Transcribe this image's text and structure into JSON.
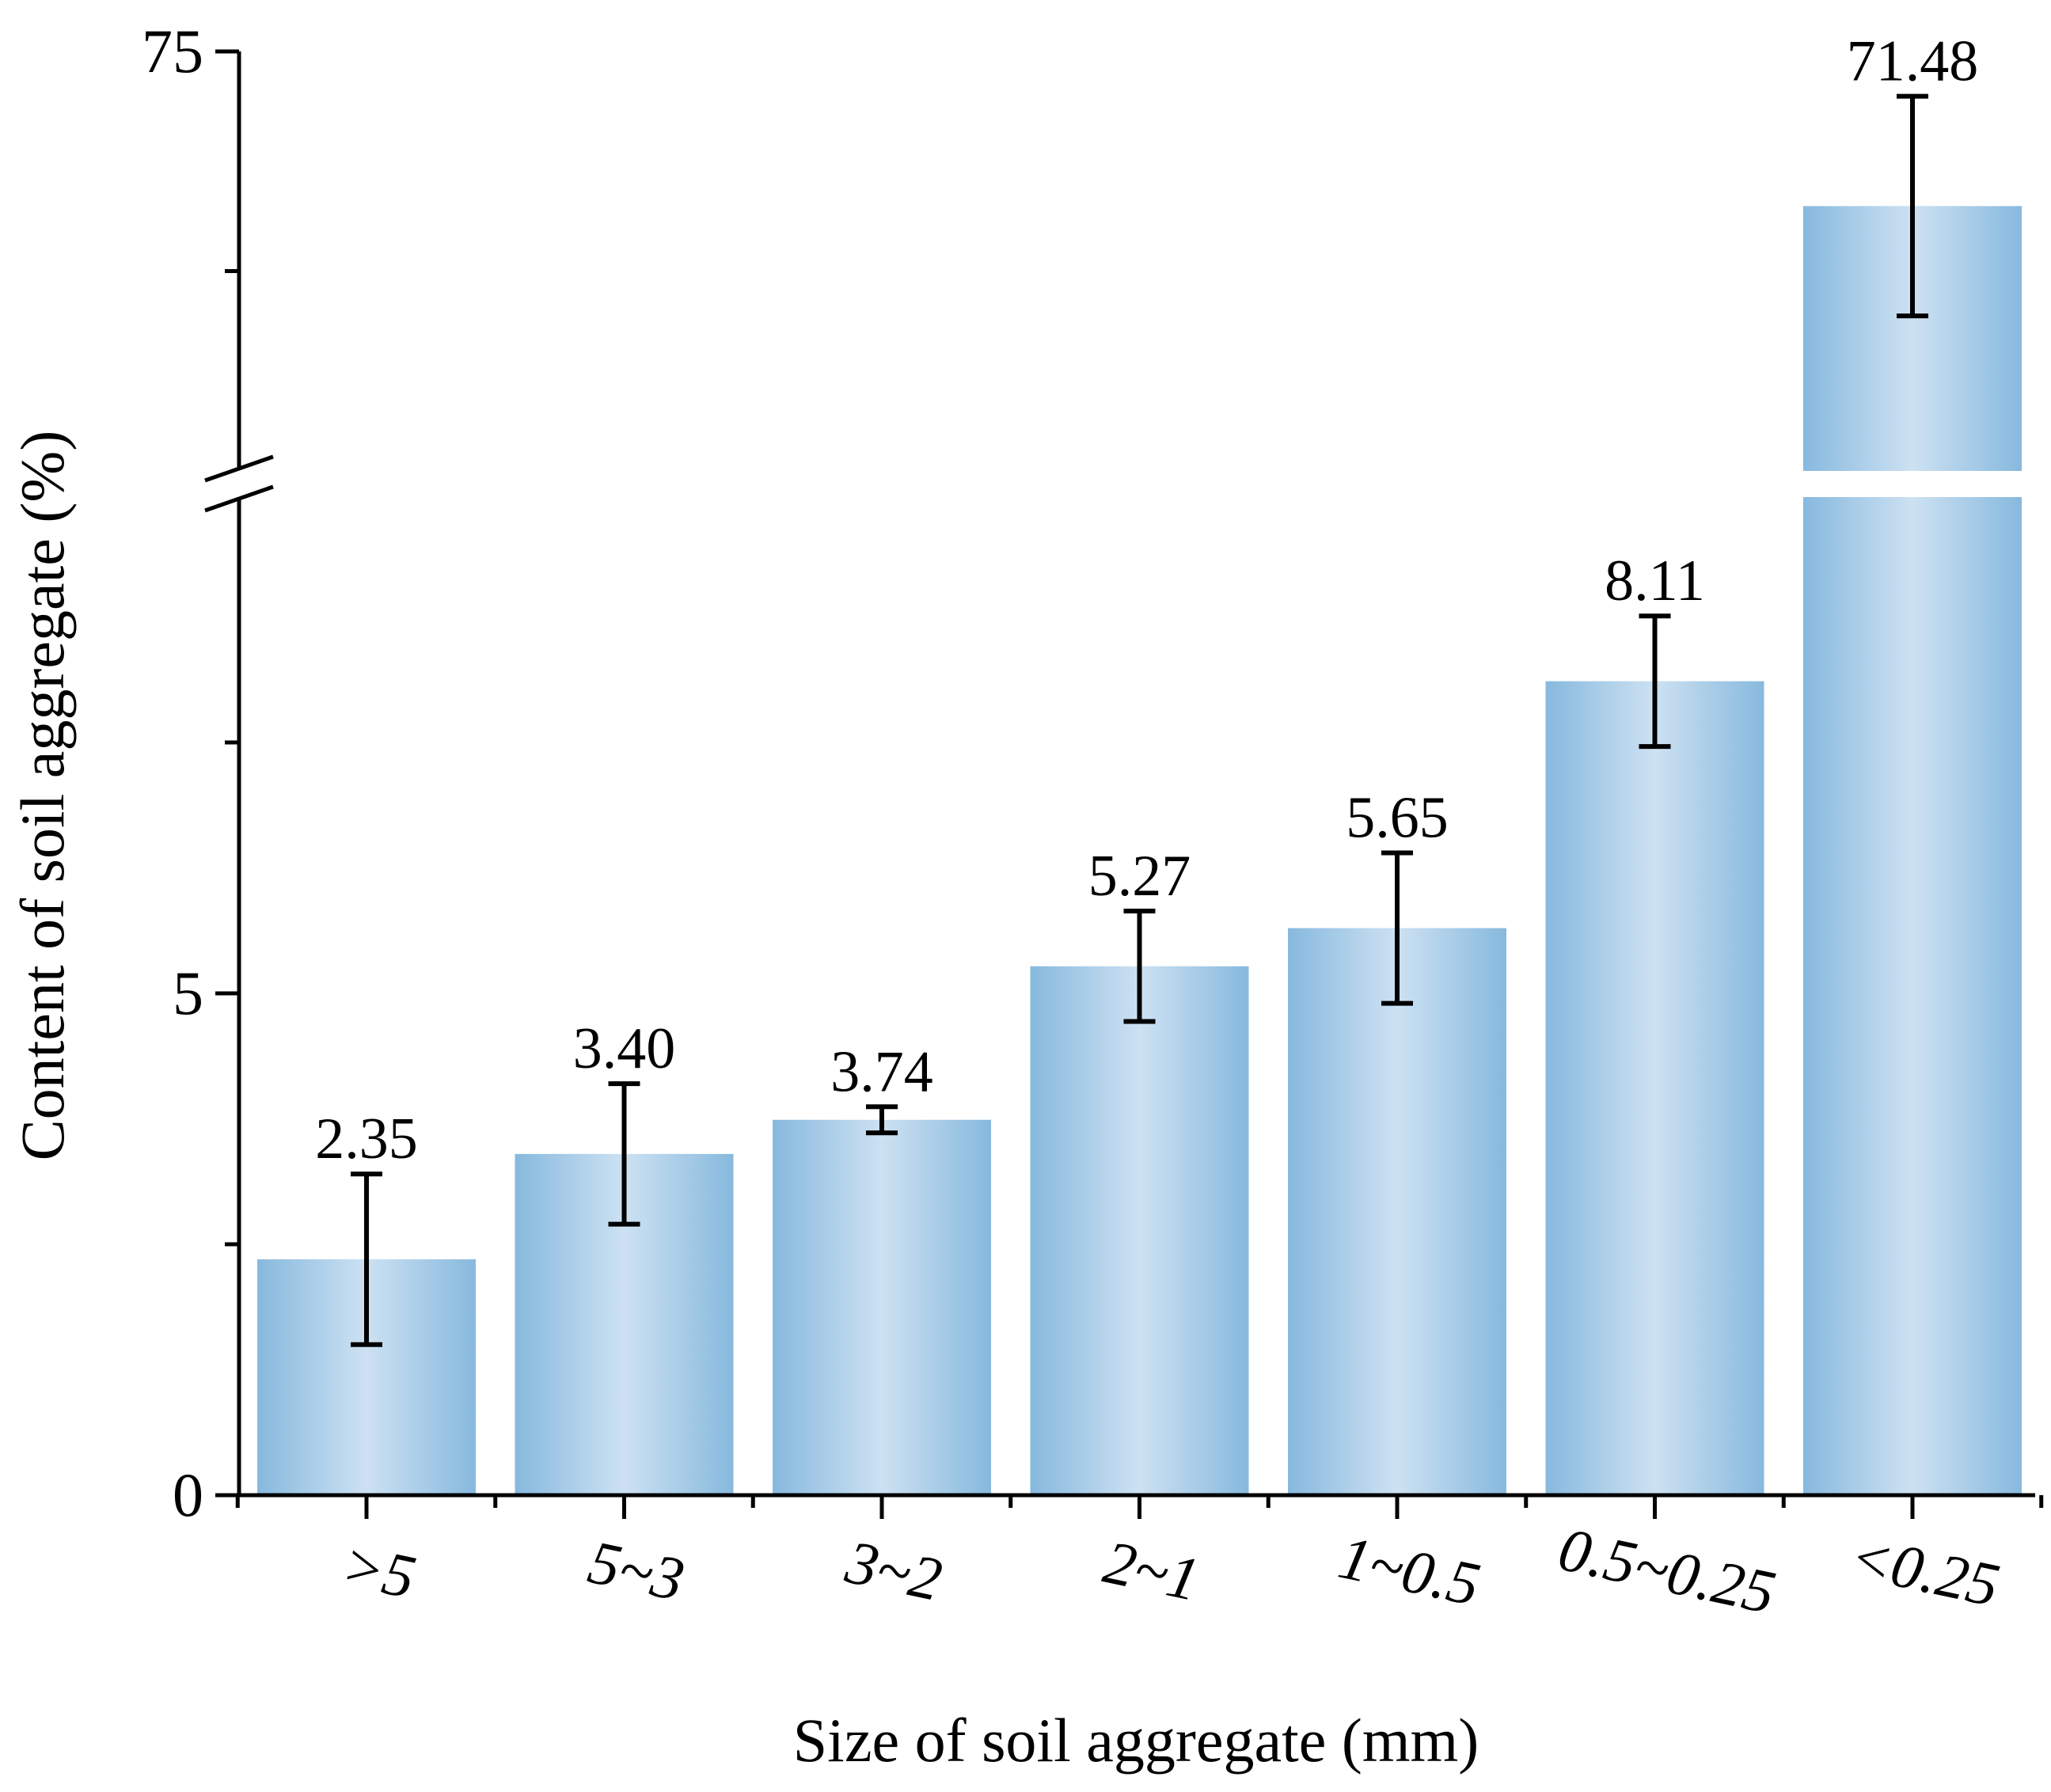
{
  "chart_data": {
    "type": "bar",
    "title": "",
    "xlabel": "Size of soil aggregate (mm)",
    "ylabel": "Content of soil aggregate (%)",
    "categories": [
      ">5",
      "5~3",
      "3~2",
      "2~1",
      "1~0.5",
      "0.5~0.25",
      "<0.25"
    ],
    "values": [
      2.35,
      3.4,
      3.74,
      5.27,
      5.65,
      8.11,
      71.48
    ],
    "value_labels": [
      "2.35",
      "3.40",
      "3.74",
      "5.27",
      "5.65",
      "8.11",
      "71.48"
    ],
    "errors": [
      0.85,
      0.7,
      0.13,
      0.55,
      0.75,
      0.65,
      2.5
    ],
    "y_broken_axis": {
      "lower_range": [
        0,
        10
      ],
      "upper_range": [
        65,
        75
      ],
      "tick_labels": [
        "0",
        "5",
        "75"
      ]
    },
    "grid": false,
    "legend": "none",
    "bar_color": "#87b9de",
    "bar_highlight": "#cde1f2"
  }
}
